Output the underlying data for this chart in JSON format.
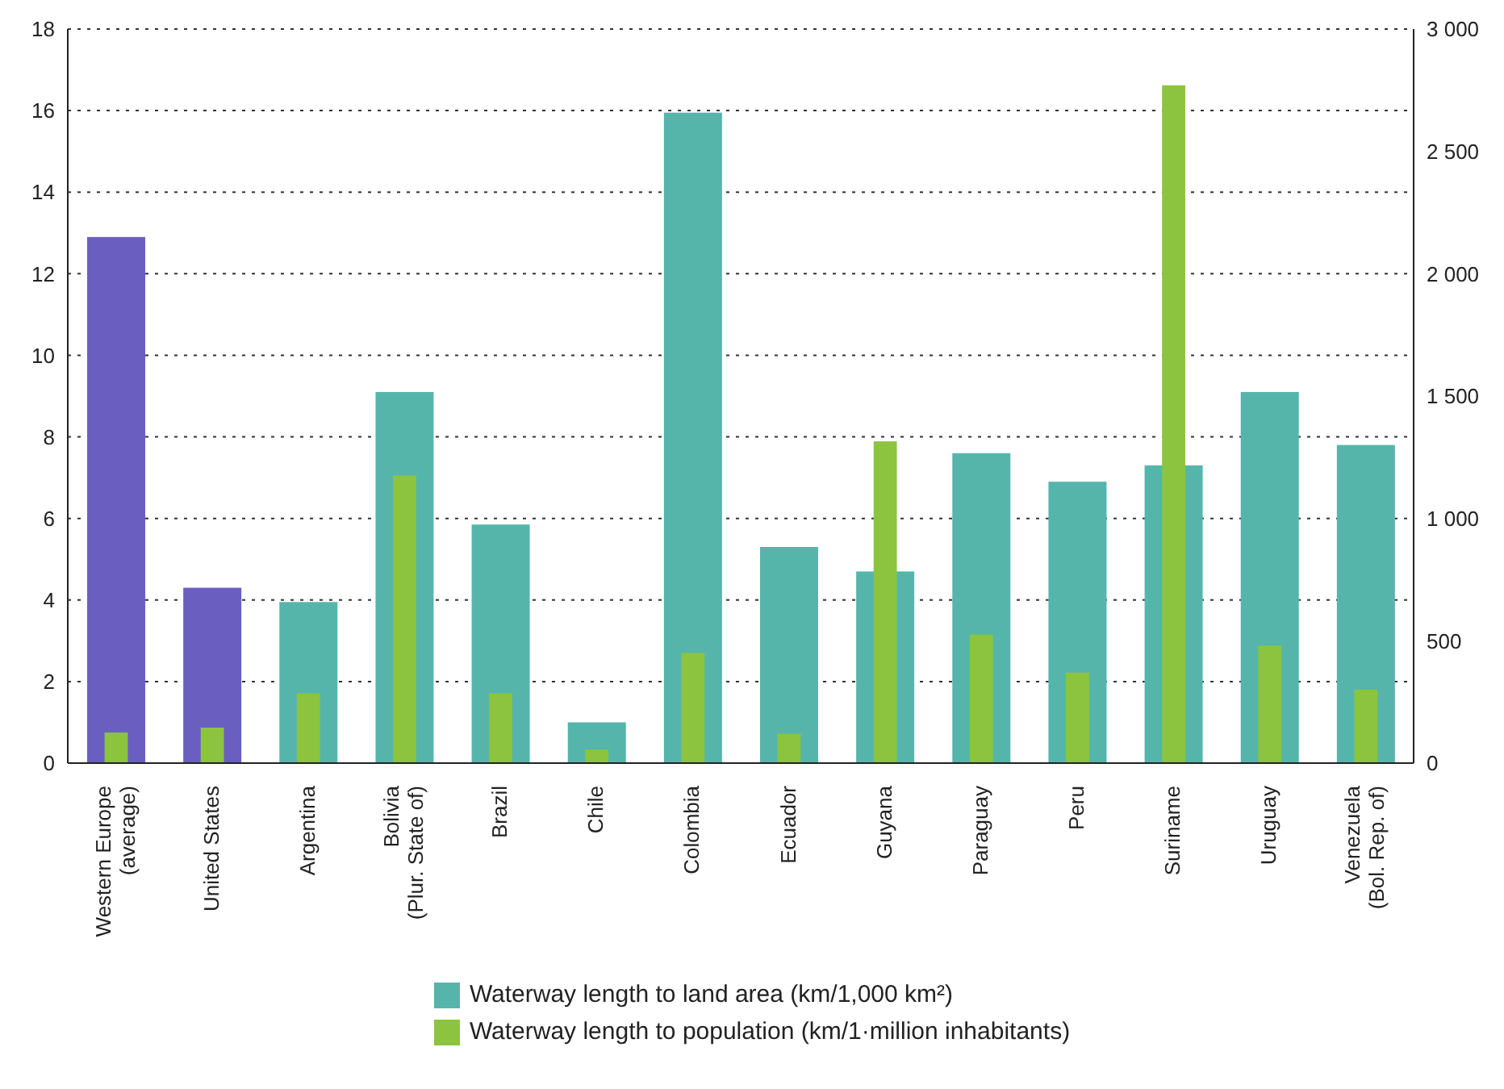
{
  "chart_data": {
    "type": "bar",
    "categories": [
      "Western Europe (average)",
      "United States",
      "Argentina",
      "Bolivia (Plur. State of)",
      "Brazil",
      "Chile",
      "Colombia",
      "Ecuador",
      "Guyana",
      "Paraguay",
      "Peru",
      "Suriname",
      "Uruguay",
      "Venezuela (Bol. Rep. of)"
    ],
    "series": [
      {
        "name": "Waterway length to land area (km/1,000 km²)",
        "color": "#56b5ab",
        "colors": [
          "#6a5fc0",
          "#6a5fc0",
          "#56b5ab",
          "#56b5ab",
          "#56b5ab",
          "#56b5ab",
          "#56b5ab",
          "#56b5ab",
          "#56b5ab",
          "#56b5ab",
          "#56b5ab",
          "#56b5ab",
          "#56b5ab",
          "#56b5ab"
        ],
        "values": [
          12.9,
          4.3,
          3.95,
          9.1,
          5.85,
          1.0,
          15.95,
          5.3,
          4.7,
          7.6,
          6.9,
          7.3,
          9.1,
          7.8
        ]
      },
      {
        "name": "Waterway length to population (km/1·million inhabitants)",
        "color": "#8cc43f",
        "axis": "y2",
        "values": [
          125,
          145,
          285,
          1175,
          285,
          55,
          450,
          120,
          1315,
          525,
          370,
          2770,
          480,
          300
        ]
      }
    ],
    "ylim": [
      0,
      18
    ],
    "yticks": [
      0,
      2,
      4,
      6,
      8,
      10,
      12,
      14,
      16,
      18
    ],
    "y2lim": [
      0,
      3000
    ],
    "y2ticks": [
      0,
      500,
      {
        "value": 1000,
        "label": "1 000"
      },
      {
        "value": 1500,
        "label": "1 500"
      },
      {
        "value": 2000,
        "label": "2 000"
      },
      {
        "value": 2500,
        "label": "2 500"
      },
      {
        "value": 3000,
        "label": "3 000"
      }
    ],
    "grid": "y",
    "legend": "bottom"
  }
}
